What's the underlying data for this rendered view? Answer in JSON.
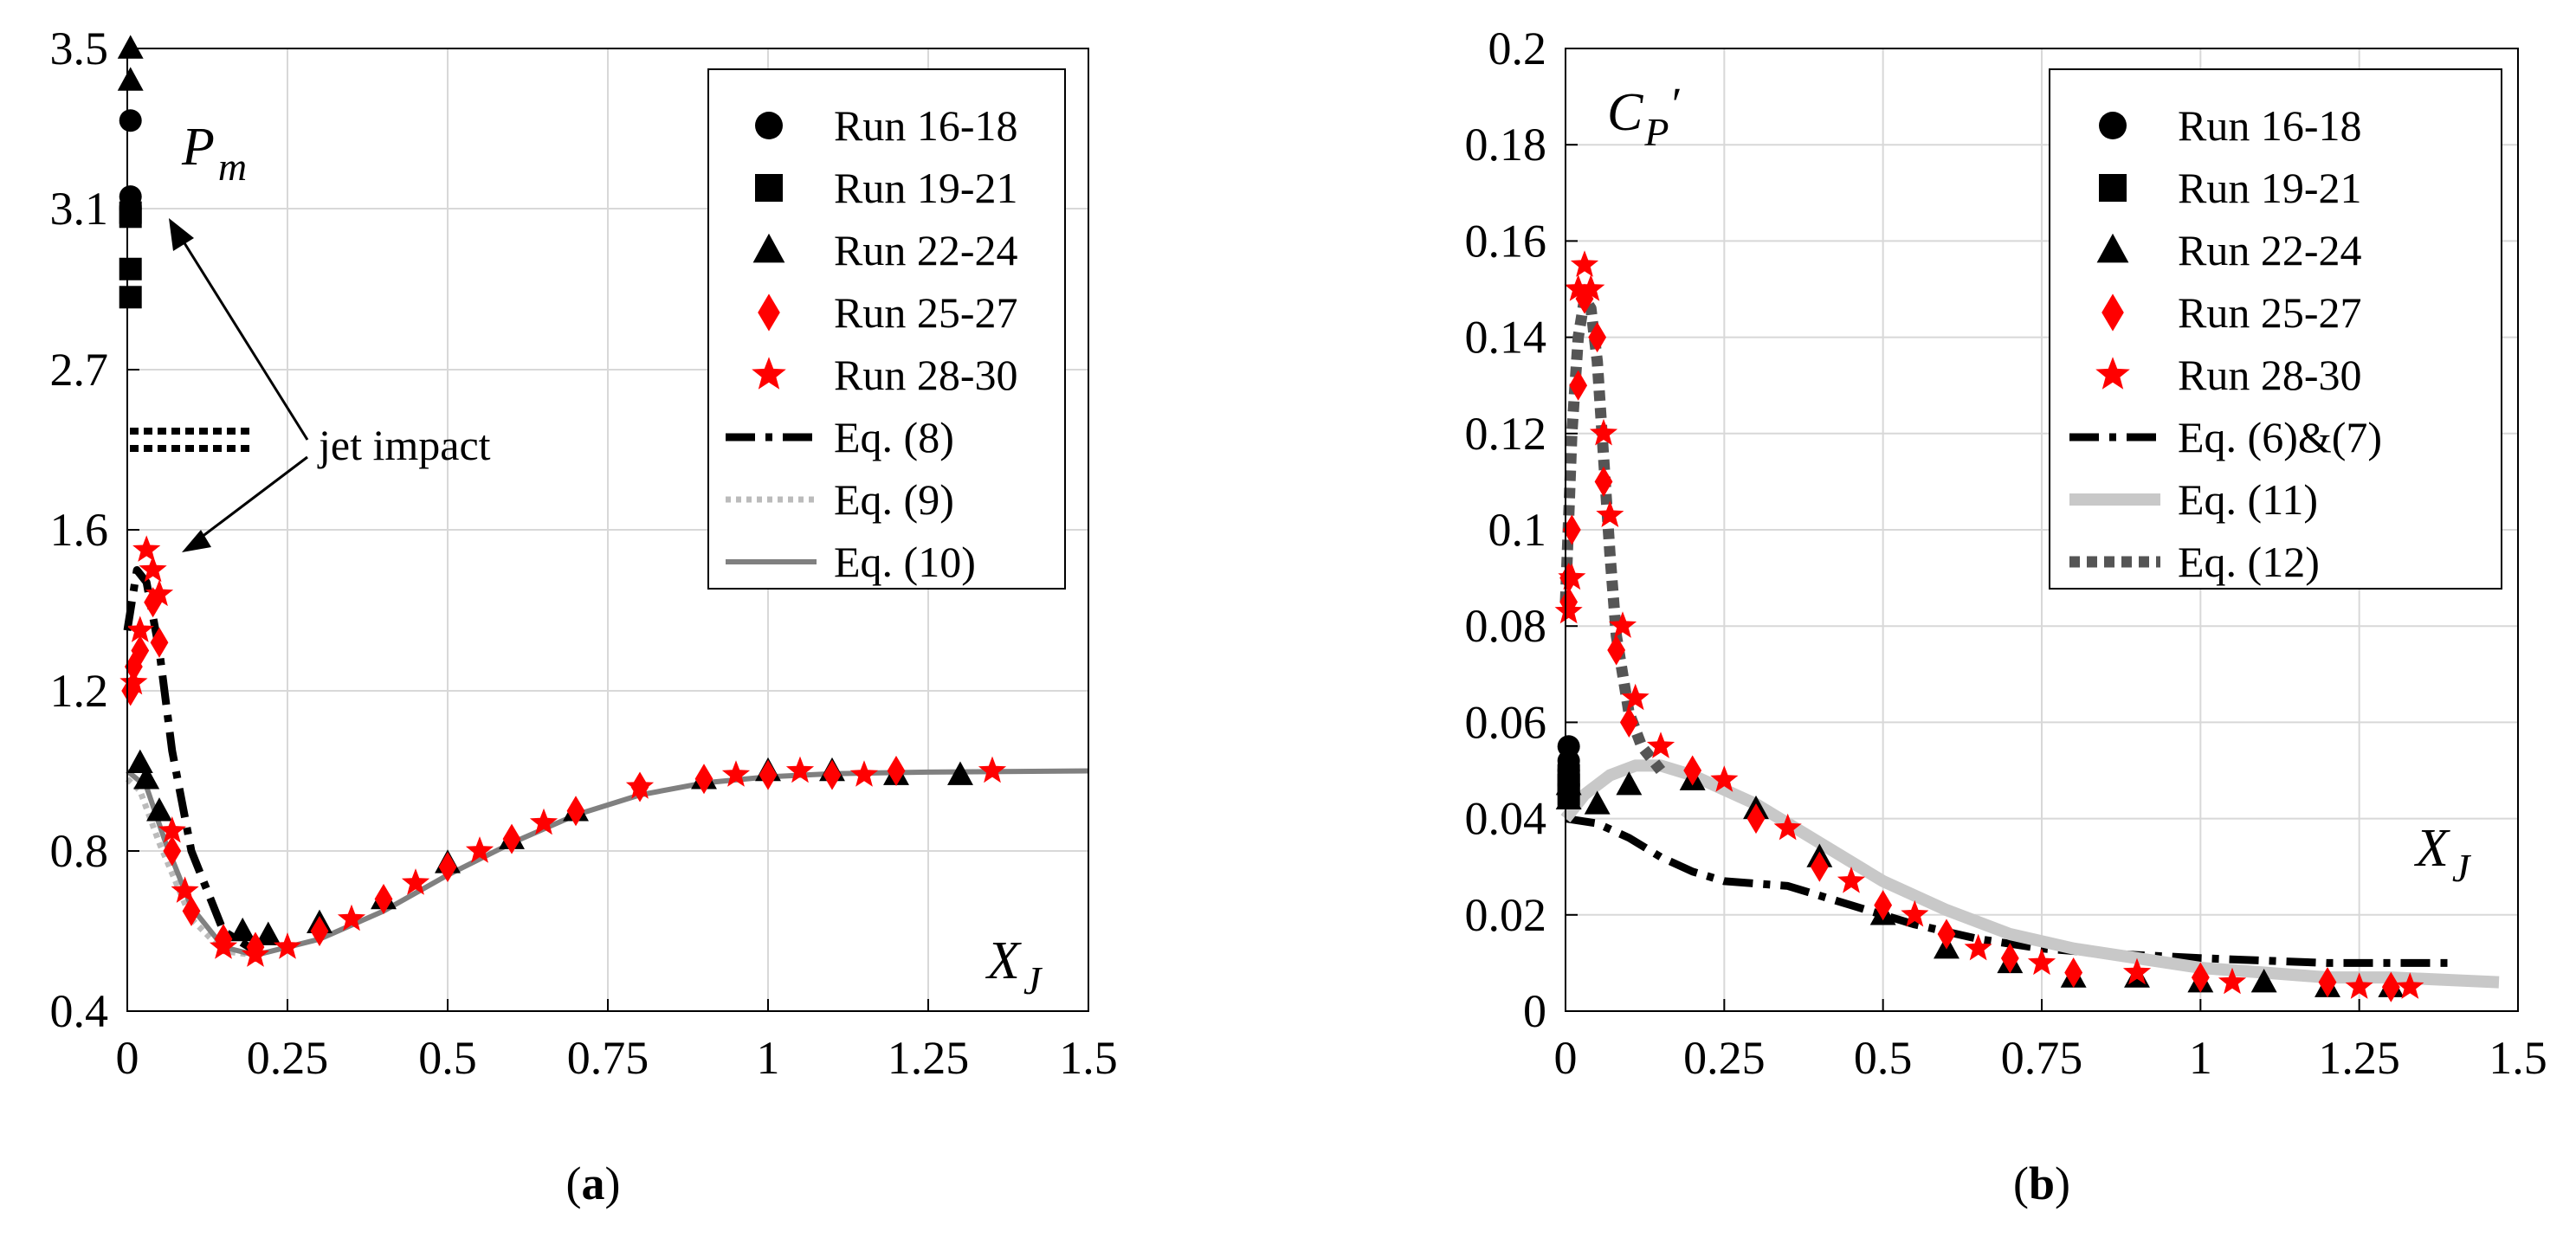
{
  "chart_data": [
    {
      "panel": "a",
      "caption_letter": "a",
      "type": "scatter",
      "ylabel_main": "P",
      "ylabel_sub": "m",
      "xlabel_main": "X",
      "xlabel_sub": "J",
      "xlim": [
        0,
        1.5
      ],
      "ylim_display": [
        0.4,
        3.5
      ],
      "xticks": [
        0,
        0.25,
        0.5,
        0.75,
        1,
        1.25,
        1.5
      ],
      "xticklabels": [
        "0",
        "0.25",
        "0.5",
        "0.75",
        "1",
        "1.25",
        "1.5"
      ],
      "yticklabels": [
        "0.4",
        "0.8",
        "1.2",
        "1.6",
        "2.7",
        "3.1",
        "3.5"
      ],
      "annotation": "jet impact",
      "legend": [
        {
          "label": "Run 16-18",
          "marker": "circle",
          "color": "#000000"
        },
        {
          "label": "Run 19-21",
          "marker": "square",
          "color": "#000000"
        },
        {
          "label": "Run 22-24",
          "marker": "triangle",
          "color": "#000000"
        },
        {
          "label": "Run 25-27",
          "marker": "diamond",
          "color": "#ff0000"
        },
        {
          "label": "Run 28-30",
          "marker": "star",
          "color": "#ff0000"
        },
        {
          "label": "Eq. (8)",
          "line": "dashdot-thick",
          "color": "#000000"
        },
        {
          "label": "Eq. (9)",
          "line": "dotted",
          "color": "#bbbbbb"
        },
        {
          "label": "Eq. (10)",
          "line": "solid",
          "color": "#808080"
        }
      ],
      "series": [
        {
          "name": "Run 16-18",
          "points": [
            [
              0.005,
              3.32
            ],
            [
              0.005,
              3.13
            ],
            [
              0.005,
              3.1
            ]
          ]
        },
        {
          "name": "Run 19-21",
          "points": [
            [
              0.005,
              3.09
            ],
            [
              0.005,
              3.08
            ],
            [
              0.005,
              2.95
            ],
            [
              0.005,
              2.88
            ]
          ]
        },
        {
          "name": "Run 22-24",
          "points": [
            [
              0.005,
              3.5
            ],
            [
              0.005,
              3.42
            ],
            [
              0.02,
              1.02
            ],
            [
              0.03,
              0.98
            ],
            [
              0.05,
              0.9
            ],
            [
              0.18,
              0.6
            ],
            [
              0.22,
              0.59
            ],
            [
              0.3,
              0.62
            ],
            [
              0.4,
              0.68
            ],
            [
              0.5,
              0.77
            ],
            [
              0.6,
              0.83
            ],
            [
              0.7,
              0.9
            ],
            [
              0.9,
              0.98
            ],
            [
              1.0,
              1.0
            ],
            [
              1.1,
              1.0
            ],
            [
              1.2,
              0.99
            ],
            [
              1.3,
              0.99
            ]
          ]
        },
        {
          "name": "Run 25-27",
          "points": [
            [
              0.005,
              1.2
            ],
            [
              0.01,
              1.26
            ],
            [
              0.02,
              1.3
            ],
            [
              0.04,
              1.42
            ],
            [
              0.05,
              1.32
            ],
            [
              0.07,
              0.8
            ],
            [
              0.1,
              0.65
            ],
            [
              0.15,
              0.58
            ],
            [
              0.2,
              0.56
            ],
            [
              0.3,
              0.6
            ],
            [
              0.4,
              0.68
            ],
            [
              0.5,
              0.76
            ],
            [
              0.6,
              0.83
            ],
            [
              0.7,
              0.9
            ],
            [
              0.8,
              0.96
            ],
            [
              0.9,
              0.98
            ],
            [
              1.0,
              0.99
            ],
            [
              1.1,
              0.99
            ],
            [
              1.2,
              1.0
            ]
          ]
        },
        {
          "name": "Run 28-30",
          "points": [
            [
              0.01,
              1.22
            ],
            [
              0.02,
              1.35
            ],
            [
              0.03,
              1.55
            ],
            [
              0.04,
              1.5
            ],
            [
              0.05,
              1.44
            ],
            [
              0.07,
              0.85
            ],
            [
              0.09,
              0.7
            ],
            [
              0.15,
              0.56
            ],
            [
              0.2,
              0.54
            ],
            [
              0.25,
              0.56
            ],
            [
              0.35,
              0.63
            ],
            [
              0.45,
              0.72
            ],
            [
              0.55,
              0.8
            ],
            [
              0.65,
              0.87
            ],
            [
              0.8,
              0.96
            ],
            [
              0.95,
              0.99
            ],
            [
              1.05,
              1.0
            ],
            [
              1.15,
              0.99
            ],
            [
              1.35,
              1.0
            ]
          ]
        },
        {
          "name": "Eq. (8)",
          "points": [
            [
              0.0,
              1.35
            ],
            [
              0.015,
              1.5
            ],
            [
              0.03,
              1.47
            ],
            [
              0.05,
              1.3
            ],
            [
              0.07,
              1.05
            ],
            [
              0.1,
              0.8
            ],
            [
              0.15,
              0.6
            ],
            [
              0.2,
              0.55
            ]
          ]
        },
        {
          "name": "Eq. (9)",
          "points": [
            [
              0.0,
              0.98
            ],
            [
              0.02,
              0.95
            ],
            [
              0.05,
              0.82
            ],
            [
              0.1,
              0.63
            ],
            [
              0.15,
              0.55
            ],
            [
              0.2,
              0.54
            ]
          ]
        },
        {
          "name": "Eq. (10)",
          "points": [
            [
              0.0,
              1.0
            ],
            [
              0.03,
              0.96
            ],
            [
              0.06,
              0.82
            ],
            [
              0.1,
              0.66
            ],
            [
              0.15,
              0.56
            ],
            [
              0.2,
              0.54
            ],
            [
              0.3,
              0.58
            ],
            [
              0.4,
              0.65
            ],
            [
              0.5,
              0.74
            ],
            [
              0.6,
              0.82
            ],
            [
              0.7,
              0.89
            ],
            [
              0.8,
              0.94
            ],
            [
              0.9,
              0.97
            ],
            [
              1.0,
              0.985
            ],
            [
              1.1,
              0.993
            ],
            [
              1.25,
              0.997
            ],
            [
              1.5,
              1.0
            ]
          ]
        }
      ]
    },
    {
      "panel": "b",
      "caption_letter": "b",
      "type": "scatter",
      "ylabel_main": "C",
      "ylabel_sub": "P",
      "ylabel_prime": "′",
      "xlabel_main": "X",
      "xlabel_sub": "J",
      "xlim": [
        0,
        1.5
      ],
      "ylim": [
        0,
        0.2
      ],
      "xticks": [
        0,
        0.25,
        0.5,
        0.75,
        1,
        1.25,
        1.5
      ],
      "xticklabels": [
        "0",
        "0.25",
        "0.5",
        "0.75",
        "1",
        "1.25",
        "1.5"
      ],
      "yticks": [
        0,
        0.02,
        0.04,
        0.06,
        0.08,
        0.1,
        0.12,
        0.14,
        0.16,
        0.18,
        0.2
      ],
      "yticklabels": [
        "0",
        "0.02",
        "0.04",
        "0.06",
        "0.08",
        "0.1",
        "0.12",
        "0.14",
        "0.16",
        "0.18",
        "0.2"
      ],
      "legend": [
        {
          "label": "Run 16-18",
          "marker": "circle",
          "color": "#000000"
        },
        {
          "label": "Run 19-21",
          "marker": "square",
          "color": "#000000"
        },
        {
          "label": "Run 22-24",
          "marker": "triangle",
          "color": "#000000"
        },
        {
          "label": "Run 25-27",
          "marker": "diamond",
          "color": "#ff0000"
        },
        {
          "label": "Run 28-30",
          "marker": "star",
          "color": "#ff0000"
        },
        {
          "label": "Eq. (6)&(7)",
          "line": "dashdot-thick",
          "color": "#000000"
        },
        {
          "label": "Eq. (11)",
          "line": "solid-thick",
          "color": "#c8c8c8"
        },
        {
          "label": "Eq. (12)",
          "line": "dotted-thick",
          "color": "#555555"
        }
      ],
      "series": [
        {
          "name": "Run 16-18",
          "points": [
            [
              0.005,
              0.055
            ],
            [
              0.005,
              0.052
            ],
            [
              0.005,
              0.05
            ]
          ]
        },
        {
          "name": "Run 19-21",
          "points": [
            [
              0.005,
              0.049
            ],
            [
              0.005,
              0.047
            ],
            [
              0.005,
              0.045
            ]
          ]
        },
        {
          "name": "Run 22-24",
          "points": [
            [
              0.005,
              0.047
            ],
            [
              0.005,
              0.044
            ],
            [
              0.05,
              0.043
            ],
            [
              0.1,
              0.047
            ],
            [
              0.2,
              0.048
            ],
            [
              0.3,
              0.042
            ],
            [
              0.4,
              0.032
            ],
            [
              0.5,
              0.02
            ],
            [
              0.6,
              0.013
            ],
            [
              0.7,
              0.01
            ],
            [
              0.8,
              0.007
            ],
            [
              0.9,
              0.007
            ],
            [
              1.0,
              0.006
            ],
            [
              1.1,
              0.006
            ],
            [
              1.2,
              0.005
            ],
            [
              1.3,
              0.005
            ]
          ]
        },
        {
          "name": "Run 25-27",
          "points": [
            [
              0.005,
              0.09
            ],
            [
              0.005,
              0.085
            ],
            [
              0.01,
              0.1
            ],
            [
              0.02,
              0.13
            ],
            [
              0.03,
              0.148
            ],
            [
              0.05,
              0.14
            ],
            [
              0.06,
              0.11
            ],
            [
              0.08,
              0.075
            ],
            [
              0.1,
              0.06
            ],
            [
              0.2,
              0.05
            ],
            [
              0.3,
              0.04
            ],
            [
              0.4,
              0.03
            ],
            [
              0.5,
              0.022
            ],
            [
              0.6,
              0.016
            ],
            [
              0.7,
              0.011
            ],
            [
              0.8,
              0.008
            ],
            [
              1.0,
              0.007
            ],
            [
              1.2,
              0.006
            ],
            [
              1.3,
              0.005
            ]
          ]
        },
        {
          "name": "Run 28-30",
          "points": [
            [
              0.005,
              0.083
            ],
            [
              0.01,
              0.09
            ],
            [
              0.02,
              0.15
            ],
            [
              0.03,
              0.155
            ],
            [
              0.04,
              0.15
            ],
            [
              0.06,
              0.12
            ],
            [
              0.07,
              0.103
            ],
            [
              0.09,
              0.08
            ],
            [
              0.11,
              0.065
            ],
            [
              0.15,
              0.055
            ],
            [
              0.25,
              0.048
            ],
            [
              0.35,
              0.038
            ],
            [
              0.45,
              0.027
            ],
            [
              0.55,
              0.02
            ],
            [
              0.65,
              0.013
            ],
            [
              0.75,
              0.01
            ],
            [
              0.9,
              0.008
            ],
            [
              1.05,
              0.006
            ],
            [
              1.25,
              0.005
            ],
            [
              1.33,
              0.005
            ]
          ]
        },
        {
          "name": "Eq. (6)&(7)",
          "points": [
            [
              0.0,
              0.04
            ],
            [
              0.05,
              0.039
            ],
            [
              0.1,
              0.036
            ],
            [
              0.15,
              0.032
            ],
            [
              0.2,
              0.029
            ],
            [
              0.25,
              0.027
            ],
            [
              0.35,
              0.026
            ],
            [
              0.45,
              0.022
            ],
            [
              0.55,
              0.018
            ],
            [
              0.65,
              0.015
            ],
            [
              0.75,
              0.013
            ],
            [
              0.85,
              0.012
            ],
            [
              1.0,
              0.011
            ],
            [
              1.2,
              0.01
            ],
            [
              1.4,
              0.01
            ]
          ]
        },
        {
          "name": "Eq. (11)",
          "points": [
            [
              0.0,
              0.04
            ],
            [
              0.03,
              0.045
            ],
            [
              0.07,
              0.049
            ],
            [
              0.11,
              0.051
            ],
            [
              0.15,
              0.051
            ],
            [
              0.2,
              0.049
            ],
            [
              0.3,
              0.043
            ],
            [
              0.4,
              0.035
            ],
            [
              0.5,
              0.027
            ],
            [
              0.6,
              0.021
            ],
            [
              0.7,
              0.016
            ],
            [
              0.8,
              0.013
            ],
            [
              0.9,
              0.011
            ],
            [
              1.0,
              0.009
            ],
            [
              1.1,
              0.008
            ],
            [
              1.2,
              0.007
            ],
            [
              1.3,
              0.007
            ],
            [
              1.47,
              0.006
            ]
          ]
        },
        {
          "name": "Eq. (12)",
          "points": [
            [
              0.0,
              0.085
            ],
            [
              0.01,
              0.12
            ],
            [
              0.02,
              0.14
            ],
            [
              0.03,
              0.148
            ],
            [
              0.04,
              0.146
            ],
            [
              0.05,
              0.135
            ],
            [
              0.06,
              0.115
            ],
            [
              0.07,
              0.095
            ],
            [
              0.08,
              0.078
            ],
            [
              0.1,
              0.062
            ],
            [
              0.12,
              0.055
            ],
            [
              0.15,
              0.05
            ]
          ]
        }
      ]
    }
  ]
}
